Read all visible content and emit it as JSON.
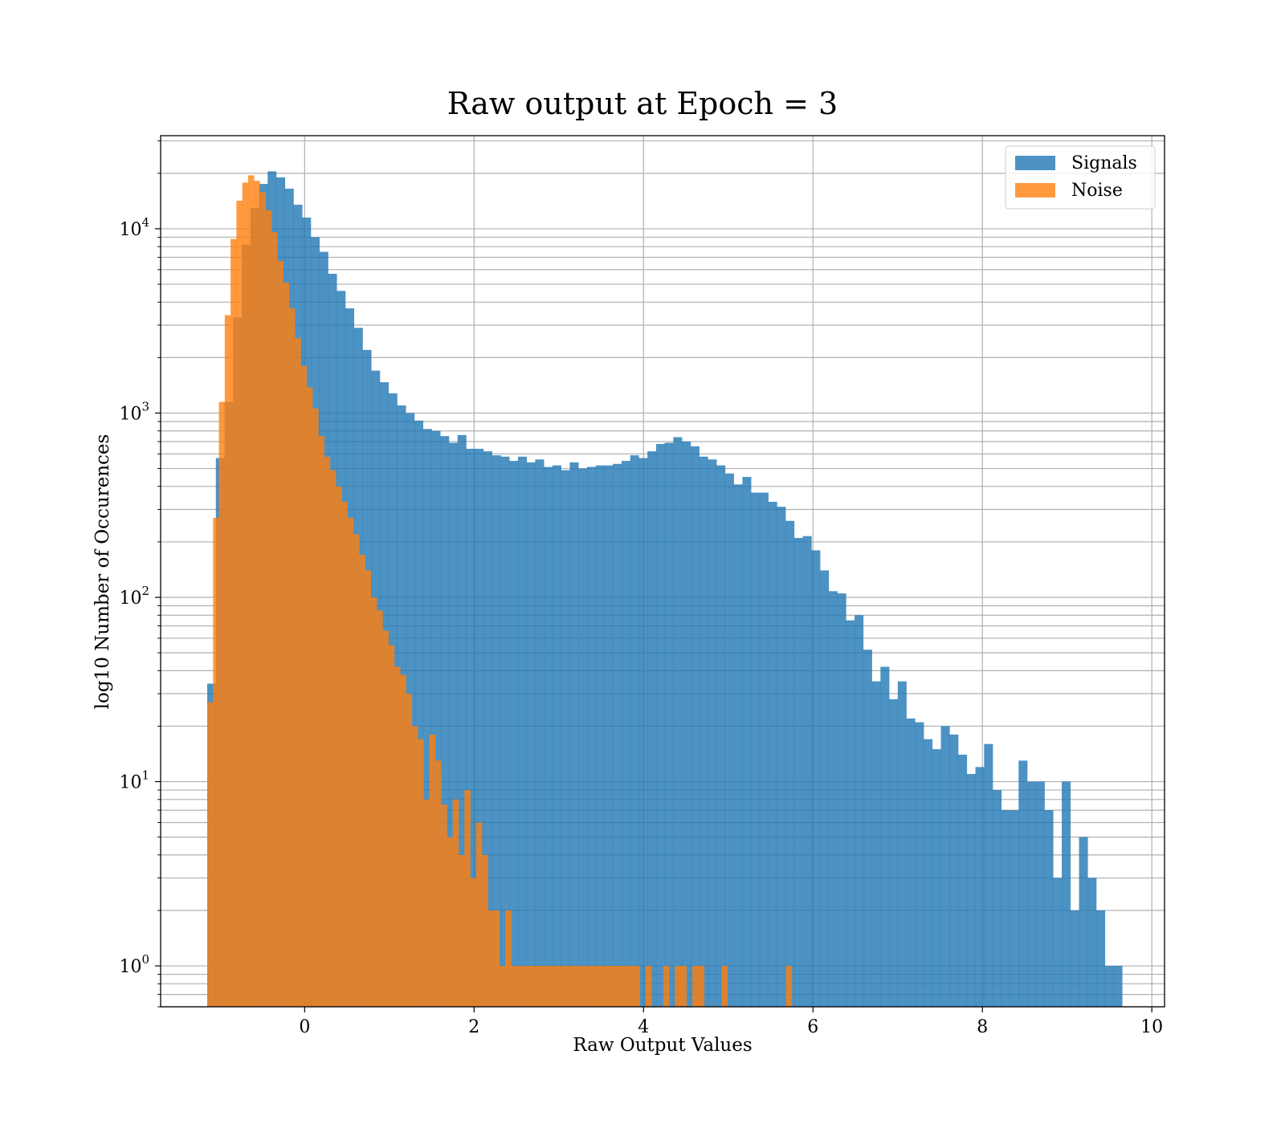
{
  "chart_data": {
    "type": "bar",
    "title": "Raw output at Epoch = 3",
    "xlabel": "Raw Output Values",
    "ylabel": "log10 Number of Occurences",
    "xlim": [
      -1.7,
      10.15
    ],
    "ylim": [
      0.6,
      32000
    ],
    "yscale": "log",
    "grid": true,
    "legend_position": "top-right",
    "xticks": [
      0,
      2,
      4,
      6,
      8,
      10
    ],
    "xtick_labels": [
      "0",
      "2",
      "4",
      "6",
      "8",
      "10"
    ],
    "yticks": [
      {
        "value": 1,
        "base": "10",
        "exp": "0"
      },
      {
        "value": 10,
        "base": "10",
        "exp": "1"
      },
      {
        "value": 100,
        "base": "10",
        "exp": "2"
      },
      {
        "value": 1000,
        "base": "10",
        "exp": "3"
      },
      {
        "value": 10000,
        "base": "10",
        "exp": "4"
      }
    ],
    "series": [
      {
        "name": "Signals",
        "color": "#1f77b4",
        "bin_edges": [
          -1.15,
          9.65
        ],
        "values": [
          34,
          570,
          1150,
          3300,
          8200,
          13000,
          17500,
          20500,
          19000,
          16500,
          13500,
          11500,
          9000,
          7500,
          5700,
          4600,
          3700,
          2900,
          2200,
          1700,
          1470,
          1280,
          1100,
          1000,
          910,
          820,
          800,
          750,
          690,
          760,
          640,
          640,
          620,
          590,
          580,
          550,
          580,
          540,
          560,
          510,
          520,
          490,
          540,
          500,
          510,
          520,
          520,
          530,
          550,
          590,
          570,
          620,
          680,
          690,
          740,
          700,
          660,
          580,
          560,
          520,
          470,
          410,
          450,
          370,
          370,
          330,
          310,
          260,
          210,
          215,
          180,
          140,
          108,
          105,
          75,
          80,
          52,
          35,
          42,
          28,
          35,
          22,
          21,
          17,
          15,
          20,
          18,
          14,
          11,
          12,
          16,
          9,
          7,
          7,
          13,
          10,
          10,
          7,
          3,
          10,
          2,
          5,
          3,
          2,
          1,
          1
        ]
      },
      {
        "name": "Noise",
        "color": "#ff7f0e",
        "bin_edges": [
          -1.15,
          5.75
        ],
        "values": [
          27,
          270,
          1150,
          3400,
          8800,
          14200,
          17800,
          19500,
          18200,
          15800,
          12600,
          9600,
          6700,
          5100,
          3700,
          2550,
          1800,
          1380,
          1060,
          750,
          580,
          490,
          400,
          330,
          270,
          220,
          170,
          140,
          100,
          85,
          66,
          55,
          42,
          38,
          30,
          20,
          17,
          8,
          18,
          13,
          7.5,
          5,
          8,
          4,
          9,
          3,
          6,
          4,
          2,
          2,
          1,
          2,
          1,
          1,
          1,
          1,
          1,
          1,
          1,
          1,
          1,
          1,
          1,
          1,
          1,
          1,
          1,
          1,
          1,
          1,
          1,
          1,
          1,
          1,
          1,
          1,
          1,
          1,
          1,
          1,
          1,
          1,
          1,
          1,
          1,
          1,
          1,
          1,
          1,
          1,
          1,
          1,
          1,
          1,
          1,
          1,
          1,
          1,
          1,
          1
        ],
        "zero_bins_after": [
          3.95,
          5.75
        ],
        "nonzero_bins_after": [
          4.05,
          4.25,
          4.45,
          4.65,
          4.95,
          5.75
        ]
      }
    ]
  }
}
